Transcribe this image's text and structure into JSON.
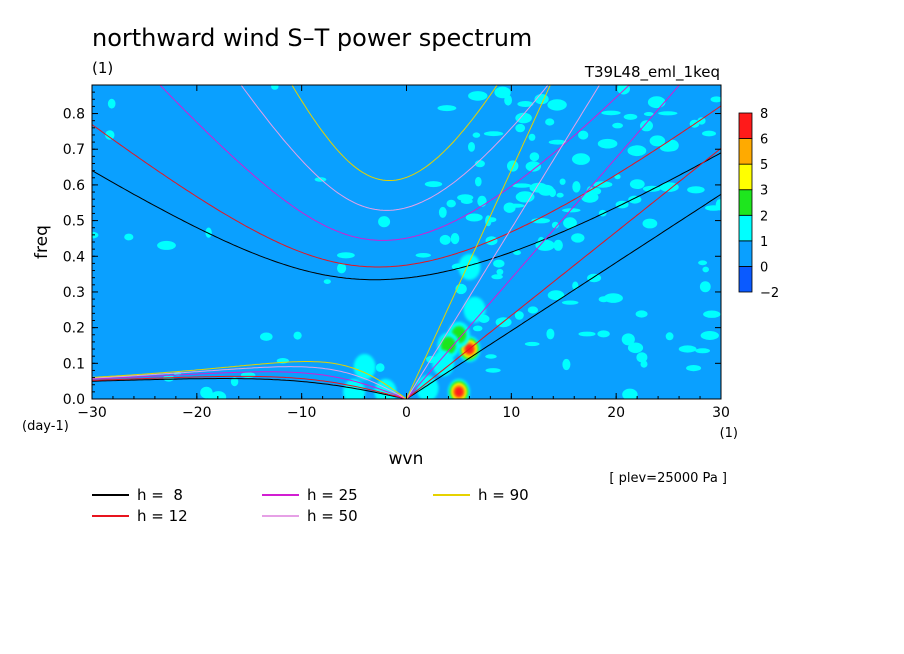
{
  "chart_data": {
    "type": "heatmap",
    "title": "northward wind S–T power spectrum",
    "subtitle_left": "(1)",
    "subtitle_right": "T39L48_eml_1keq",
    "xlabel": "wvn",
    "ylabel": "freq",
    "x_unit": "(1)",
    "y_unit": "(day-1)",
    "level_note": "[ plev=25000 Pa ]",
    "xlim": [
      -30,
      30
    ],
    "ylim": [
      0,
      0.88
    ],
    "x_ticks": [
      -30,
      -20,
      -10,
      0,
      10,
      20,
      30
    ],
    "x_tick_labels": [
      "−30",
      "−20",
      "−10",
      "0",
      "10",
      "20",
      "30"
    ],
    "y_ticks": [
      0.0,
      0.1,
      0.2,
      0.3,
      0.4,
      0.5,
      0.6,
      0.7,
      0.8
    ],
    "y_tick_labels": [
      "0.0",
      "0.1",
      "0.2",
      "0.3",
      "0.4",
      "0.5",
      "0.6",
      "0.7",
      "0.8"
    ],
    "colorbar": {
      "levels": [
        -2,
        0,
        1,
        2,
        3,
        5,
        6,
        8
      ],
      "level_labels": [
        "−2",
        "0",
        "1",
        "2",
        "3",
        "5",
        "6",
        "8"
      ],
      "colors": [
        "#0a5aff",
        "#0aa0ff",
        "#00ffff",
        "#1ee61e",
        "#ffff00",
        "#ffaa00",
        "#ff1a1a"
      ]
    },
    "background_level_color": "#0aa0ff",
    "spectral_peaks": [
      {
        "wvn": 5,
        "freq": 0.02,
        "peak": 8
      },
      {
        "wvn": 6,
        "freq": 0.14,
        "peak": 8
      },
      {
        "wvn": 5,
        "freq": 0.18,
        "peak": 3
      },
      {
        "wvn": 4,
        "freq": 0.15,
        "peak": 3
      },
      {
        "wvn": 3.5,
        "freq": 0.1,
        "peak": 2
      },
      {
        "wvn": 6.5,
        "freq": 0.25,
        "peak": 2
      },
      {
        "wvn": 6,
        "freq": 0.37,
        "peak": 2
      },
      {
        "wvn": -4,
        "freq": 0.09,
        "peak": 2
      },
      {
        "wvn": -5,
        "freq": 0.02,
        "peak": 2
      },
      {
        "wvn": -2,
        "freq": 0.02,
        "peak": 2
      },
      {
        "wvn": 2,
        "freq": 0.03,
        "peak": 2
      }
    ],
    "equivalent_depths": [
      {
        "label": "h =  8",
        "h": 8,
        "color": "#000000"
      },
      {
        "label": "h = 12",
        "h": 12,
        "color": "#e8141e"
      },
      {
        "label": "h = 25",
        "h": 25,
        "color": "#d21ed2"
      },
      {
        "label": "h = 50",
        "h": 50,
        "color": "#e6a0e6"
      },
      {
        "label": "h = 90",
        "h": 90,
        "color": "#e6d200"
      }
    ],
    "dispersion_curve_types": [
      "kelvin",
      "mrg",
      "inertio-gravity n=1",
      "equatorial rossby n=1"
    ],
    "grid": false,
    "legend_placement": "bottom"
  }
}
